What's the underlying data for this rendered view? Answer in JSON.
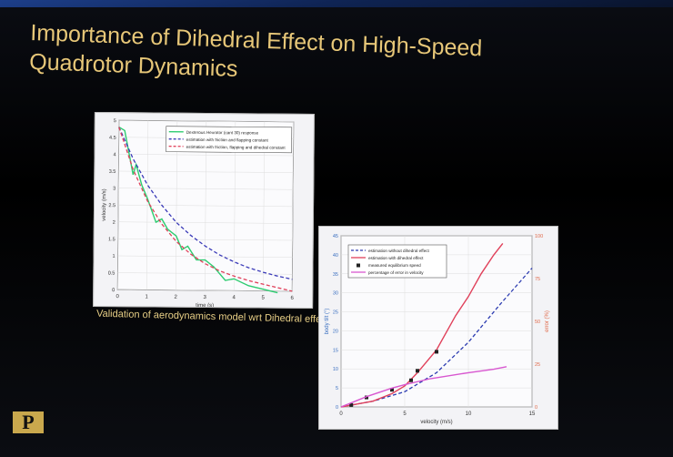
{
  "slide": {
    "title_line1": "Importance of Dihedral Effect on High-Speed",
    "title_line2": "Quadrotor Dynamics",
    "caption": "Validation of aerodynamics model wrt Dihedral effect",
    "logo": "P"
  },
  "chart_data": [
    {
      "type": "line",
      "xlabel": "time (s)",
      "ylabel": "velocity (m/s)",
      "xlim": [
        0,
        6
      ],
      "ylim": [
        0,
        5
      ],
      "xticks": [
        0,
        1,
        2,
        3,
        4,
        5,
        6
      ],
      "yticks": [
        0,
        0.5,
        1,
        1.5,
        2,
        2.5,
        3,
        3.5,
        4,
        4.5,
        5
      ],
      "grid": true,
      "legend": "top-right",
      "series": [
        {
          "name": "Dexterous Hexrotor (cant 30) response",
          "color": "#2ecc71",
          "style": "solid",
          "x": [
            0,
            0.2,
            0.5,
            0.6,
            0.8,
            1,
            1.3,
            1.5,
            1.7,
            2,
            2.2,
            2.4,
            2.7,
            3,
            3.3,
            3.7,
            4,
            4.5,
            5,
            5.5
          ],
          "y": [
            4.8,
            4.7,
            3.4,
            3.7,
            3.1,
            2.7,
            2.0,
            2.1,
            1.8,
            1.6,
            1.2,
            1.3,
            0.9,
            0.9,
            0.7,
            0.3,
            0.35,
            0.15,
            0.05,
            -0.05
          ]
        },
        {
          "name": "estimation with friction and flapping constant",
          "color": "#3a3ab8",
          "style": "dashed",
          "x": [
            0,
            0.5,
            1,
            1.5,
            2,
            2.5,
            3,
            3.5,
            4,
            4.5,
            5,
            5.5,
            6
          ],
          "y": [
            4.8,
            3.86,
            3.1,
            2.5,
            2.0,
            1.62,
            1.31,
            1.05,
            0.85,
            0.68,
            0.55,
            0.44,
            0.35
          ]
        },
        {
          "name": "estimation with friction, flapping and dihedral constant",
          "color": "#e0405a",
          "style": "dashed",
          "x": [
            0,
            0.5,
            1,
            1.5,
            2,
            2.5,
            3,
            3.5,
            4,
            4.5,
            5,
            5.5,
            6
          ],
          "y": [
            4.8,
            3.55,
            2.63,
            1.95,
            1.44,
            1.07,
            0.79,
            0.58,
            0.43,
            0.3,
            0.2,
            0.1,
            0.0
          ]
        }
      ]
    },
    {
      "type": "line",
      "xlabel": "velocity (m/s)",
      "ylabel": "body tilt (°)",
      "y2label": "error (%)",
      "xlim": [
        0,
        15
      ],
      "ylim": [
        0,
        45
      ],
      "y2lim": [
        0,
        100
      ],
      "xticks": [
        0,
        5,
        10,
        15
      ],
      "yticks": [
        0,
        5,
        10,
        15,
        20,
        25,
        30,
        35,
        40,
        45
      ],
      "y2ticks": [
        0,
        25,
        50,
        75,
        100
      ],
      "grid": true,
      "legend": "top-left",
      "series": [
        {
          "name": "estimation without dihedral effect",
          "color": "#2a3ab0",
          "style": "dashed",
          "axis": "left",
          "x": [
            0,
            2.5,
            5,
            7.5,
            10,
            12.5,
            15
          ],
          "y": [
            0,
            1.5,
            4,
            9,
            17,
            27,
            36.5
          ]
        },
        {
          "name": "estimation with dihedral effect",
          "color": "#e0405a",
          "style": "solid",
          "axis": "left",
          "x": [
            0,
            2.5,
            4,
            5,
            6,
            7.5,
            9,
            10,
            11,
            12,
            12.7
          ],
          "y": [
            0,
            1.5,
            3.5,
            5.5,
            9,
            15,
            24,
            29,
            35,
            40,
            43
          ]
        },
        {
          "name": "measured equilibrium speed",
          "color": "#222222",
          "style": "marker",
          "axis": "left",
          "x": [
            0.8,
            2,
            4,
            5.5,
            6,
            7.5
          ],
          "y": [
            0.5,
            2.5,
            4.5,
            7,
            9.5,
            14.5
          ]
        },
        {
          "name": "percentage of error in velocity",
          "color": "#d857d0",
          "style": "solid",
          "axis": "right",
          "x": [
            0,
            2,
            4,
            5,
            7,
            10,
            12,
            13
          ],
          "y": [
            0,
            6,
            11,
            13,
            16.5,
            20,
            22,
            23.5
          ]
        }
      ]
    }
  ]
}
